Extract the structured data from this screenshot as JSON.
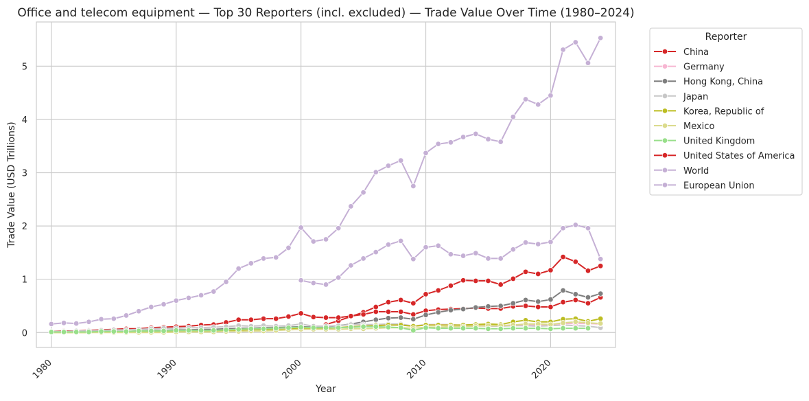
{
  "chart_data": {
    "type": "line",
    "title": "Office and telecom equipment — Top 30 Reporters (incl. excluded) — Trade Value Over Time (1980–2024)",
    "xlabel": "Year",
    "ylabel": "Trade Value (USD Trillions)",
    "xlim": [
      1978.8,
      2025.2
    ],
    "ylim": [
      -0.28,
      5.83
    ],
    "xticks": [
      1980,
      1990,
      2000,
      2010,
      2020
    ],
    "yticks": [
      0,
      1,
      2,
      3,
      4,
      5
    ],
    "grid": true,
    "legend_title": "Reporter",
    "legend_position": "outside-right",
    "series": [
      {
        "name": "World",
        "color": "#c5b0d5",
        "x": [
          1980,
          1981,
          1982,
          1983,
          1984,
          1985,
          1986,
          1987,
          1988,
          1989,
          1990,
          1991,
          1992,
          1993,
          1994,
          1995,
          1996,
          1997,
          1998,
          1999,
          2000,
          2001,
          2002,
          2003,
          2004,
          2005,
          2006,
          2007,
          2008,
          2009,
          2010,
          2011,
          2012,
          2013,
          2014,
          2015,
          2016,
          2017,
          2018,
          2019,
          2020,
          2021,
          2022,
          2023,
          2024
        ],
        "y": [
          0.16,
          0.18,
          0.17,
          0.2,
          0.25,
          0.26,
          0.32,
          0.4,
          0.48,
          0.53,
          0.6,
          0.65,
          0.7,
          0.77,
          0.95,
          1.2,
          1.3,
          1.39,
          1.41,
          1.59,
          1.97,
          1.71,
          1.75,
          1.96,
          2.37,
          2.63,
          3.01,
          3.13,
          3.23,
          2.75,
          3.37,
          3.54,
          3.57,
          3.67,
          3.73,
          3.63,
          3.58,
          4.05,
          4.38,
          4.28,
          4.45,
          5.31,
          5.45,
          5.06,
          5.53
        ]
      },
      {
        "name": "European Union",
        "color": "#c5b0d5",
        "x": [
          2000,
          2001,
          2002,
          2003,
          2004,
          2005,
          2006,
          2007,
          2008,
          2009,
          2010,
          2011,
          2012,
          2013,
          2014,
          2015,
          2016,
          2017,
          2018,
          2019,
          2020,
          2021,
          2022,
          2023,
          2024
        ],
        "y": [
          0.98,
          0.93,
          0.9,
          1.03,
          1.26,
          1.39,
          1.51,
          1.65,
          1.72,
          1.38,
          1.6,
          1.63,
          1.47,
          1.44,
          1.49,
          1.39,
          1.39,
          1.56,
          1.69,
          1.66,
          1.7,
          1.96,
          2.02,
          1.96,
          1.38
        ]
      },
      {
        "name": "China",
        "color": "#d62728",
        "x": [
          2002,
          2003,
          2004,
          2005,
          2006,
          2007,
          2008,
          2009,
          2010,
          2011,
          2012,
          2013,
          2014,
          2015,
          2016,
          2017,
          2018,
          2019,
          2020,
          2021,
          2022,
          2023,
          2024
        ],
        "y": [
          0.15,
          0.22,
          0.3,
          0.38,
          0.48,
          0.57,
          0.61,
          0.55,
          0.72,
          0.79,
          0.88,
          0.98,
          0.97,
          0.97,
          0.9,
          1.01,
          1.14,
          1.1,
          1.17,
          1.42,
          1.33,
          1.16,
          1.25
        ]
      },
      {
        "name": "United States of America",
        "color": "#d62728",
        "x": [
          1980,
          1981,
          1982,
          1983,
          1984,
          1985,
          1986,
          1987,
          1988,
          1989,
          1990,
          1991,
          1992,
          1993,
          1994,
          1995,
          1996,
          1997,
          1998,
          1999,
          2000,
          2001,
          2002,
          2003,
          2004,
          2005,
          2006,
          2007,
          2008,
          2009,
          2010,
          2011,
          2012,
          2013,
          2014,
          2015,
          2016,
          2017,
          2018,
          2019,
          2020,
          2021,
          2022,
          2023,
          2024
        ],
        "y": [
          0.02,
          0.03,
          0.03,
          0.04,
          0.05,
          0.06,
          0.07,
          0.07,
          0.09,
          0.1,
          0.11,
          0.12,
          0.14,
          0.15,
          0.19,
          0.24,
          0.24,
          0.26,
          0.26,
          0.3,
          0.36,
          0.29,
          0.28,
          0.28,
          0.31,
          0.34,
          0.39,
          0.39,
          0.39,
          0.34,
          0.41,
          0.43,
          0.44,
          0.45,
          0.46,
          0.45,
          0.45,
          0.49,
          0.5,
          0.48,
          0.48,
          0.57,
          0.61,
          0.55,
          0.66
        ]
      },
      {
        "name": "Hong Kong, China",
        "color": "#7f7f7f",
        "x": [
          1980,
          1981,
          1982,
          1983,
          1984,
          1985,
          1986,
          1987,
          1988,
          1989,
          1990,
          1991,
          1992,
          1993,
          1994,
          1995,
          1996,
          1997,
          1998,
          1999,
          2000,
          2001,
          2002,
          2003,
          2004,
          2005,
          2006,
          2007,
          2008,
          2009,
          2010,
          2011,
          2012,
          2013,
          2014,
          2015,
          2016,
          2017,
          2018,
          2019,
          2020,
          2021,
          2022,
          2023,
          2024
        ],
        "y": [
          0.01,
          0.01,
          0.01,
          0.01,
          0.02,
          0.02,
          0.02,
          0.03,
          0.04,
          0.04,
          0.05,
          0.05,
          0.06,
          0.06,
          0.07,
          0.08,
          0.08,
          0.09,
          0.09,
          0.1,
          0.11,
          0.1,
          0.11,
          0.13,
          0.16,
          0.2,
          0.24,
          0.27,
          0.28,
          0.25,
          0.33,
          0.38,
          0.42,
          0.44,
          0.47,
          0.49,
          0.5,
          0.55,
          0.61,
          0.58,
          0.62,
          0.79,
          0.72,
          0.66,
          0.73
        ]
      },
      {
        "name": "Japan",
        "color": "#c7c7c7",
        "x": [
          1980,
          1981,
          1982,
          1983,
          1984,
          1985,
          1986,
          1987,
          1988,
          1989,
          1990,
          1991,
          1992,
          1993,
          1994,
          1995,
          1996,
          1997,
          1998,
          1999,
          2000,
          2001,
          2002,
          2003,
          2004,
          2005,
          2006,
          2007,
          2008,
          2009,
          2010,
          2011,
          2012,
          2013,
          2014,
          2015,
          2016,
          2017,
          2018,
          2019,
          2020,
          2021,
          2022,
          2023,
          2024
        ],
        "y": [
          0.02,
          0.02,
          0.03,
          0.03,
          0.04,
          0.05,
          0.05,
          0.06,
          0.07,
          0.08,
          0.08,
          0.09,
          0.09,
          0.1,
          0.11,
          0.13,
          0.12,
          0.13,
          0.12,
          0.13,
          0.16,
          0.12,
          0.12,
          0.13,
          0.15,
          0.15,
          0.15,
          0.16,
          0.16,
          0.12,
          0.15,
          0.15,
          0.15,
          0.13,
          0.13,
          0.12,
          0.12,
          0.13,
          0.13,
          0.12,
          0.13,
          0.14,
          0.13,
          0.12,
          0.09
        ]
      },
      {
        "name": "Germany",
        "color": "#f7b6d2",
        "x": [
          1980,
          1981,
          1982,
          1983,
          1984,
          1985,
          1986,
          1987,
          1988,
          1989,
          1990,
          1991,
          1992,
          1993,
          1994,
          1995,
          1996,
          1997,
          1998,
          1999,
          2000,
          2001,
          2002,
          2003,
          2004,
          2005,
          2006,
          2007,
          2008,
          2009,
          2010,
          2011,
          2012,
          2013,
          2014,
          2015,
          2016,
          2017,
          2018,
          2019,
          2020,
          2021,
          2022,
          2023,
          2024
        ],
        "y": [
          0.01,
          0.01,
          0.01,
          0.01,
          0.01,
          0.02,
          0.02,
          0.02,
          0.03,
          0.03,
          0.04,
          0.04,
          0.04,
          0.04,
          0.05,
          0.06,
          0.06,
          0.06,
          0.07,
          0.07,
          0.08,
          0.08,
          0.08,
          0.09,
          0.1,
          0.11,
          0.13,
          0.14,
          0.14,
          0.12,
          0.14,
          0.15,
          0.14,
          0.14,
          0.15,
          0.13,
          0.13,
          0.14,
          0.15,
          0.14,
          0.15,
          0.17,
          0.17,
          0.17,
          0.16
        ]
      },
      {
        "name": "Korea, Republic of",
        "color": "#bcbd22",
        "x": [
          1980,
          1981,
          1982,
          1983,
          1984,
          1985,
          1986,
          1987,
          1988,
          1989,
          1990,
          1991,
          1992,
          1993,
          1994,
          1995,
          1996,
          1997,
          1998,
          1999,
          2000,
          2001,
          2002,
          2003,
          2004,
          2005,
          2006,
          2007,
          2008,
          2009,
          2010,
          2011,
          2012,
          2013,
          2014,
          2015,
          2016,
          2017,
          2018,
          2019,
          2020,
          2021,
          2022,
          2023,
          2024
        ],
        "y": [
          0.0,
          0.0,
          0.0,
          0.0,
          0.01,
          0.01,
          0.01,
          0.01,
          0.02,
          0.02,
          0.02,
          0.02,
          0.02,
          0.02,
          0.03,
          0.04,
          0.04,
          0.05,
          0.05,
          0.06,
          0.08,
          0.07,
          0.08,
          0.09,
          0.11,
          0.12,
          0.13,
          0.14,
          0.14,
          0.12,
          0.14,
          0.14,
          0.14,
          0.14,
          0.15,
          0.16,
          0.15,
          0.2,
          0.23,
          0.2,
          0.2,
          0.25,
          0.26,
          0.21,
          0.26
        ]
      },
      {
        "name": "Mexico",
        "color": "#dbdb8d",
        "x": [
          1980,
          1981,
          1982,
          1983,
          1984,
          1985,
          1986,
          1987,
          1988,
          1989,
          1990,
          1991,
          1992,
          1993,
          1994,
          1995,
          1996,
          1997,
          1998,
          1999,
          2000,
          2001,
          2002,
          2003,
          2004,
          2005,
          2006,
          2007,
          2008,
          2009,
          2010,
          2011,
          2012,
          2013,
          2014,
          2015,
          2016,
          2017,
          2018,
          2019,
          2020,
          2021,
          2022,
          2023,
          2024
        ],
        "y": [
          0.0,
          0.0,
          0.0,
          0.0,
          0.0,
          0.0,
          0.0,
          0.0,
          0.0,
          0.0,
          0.01,
          0.01,
          0.01,
          0.01,
          0.02,
          0.02,
          0.03,
          0.03,
          0.04,
          0.05,
          0.06,
          0.06,
          0.06,
          0.06,
          0.07,
          0.07,
          0.08,
          0.09,
          0.09,
          0.08,
          0.1,
          0.1,
          0.11,
          0.11,
          0.12,
          0.13,
          0.13,
          0.14,
          0.16,
          0.16,
          0.15,
          0.18,
          0.2,
          0.18,
          0.17
        ]
      },
      {
        "name": "United Kingdom",
        "color": "#98df8a",
        "x": [
          1980,
          1981,
          1982,
          1983,
          1984,
          1985,
          1986,
          1987,
          1988,
          1989,
          1990,
          1991,
          1992,
          1993,
          1994,
          1995,
          1996,
          1997,
          1998,
          1999,
          2000,
          2001,
          2002,
          2003,
          2004,
          2005,
          2006,
          2007,
          2008,
          2009,
          2010,
          2011,
          2012,
          2013,
          2014,
          2015,
          2016,
          2017,
          2018,
          2019,
          2020,
          2021,
          2022,
          2023
        ],
        "y": [
          0.01,
          0.01,
          0.01,
          0.01,
          0.02,
          0.02,
          0.02,
          0.03,
          0.03,
          0.03,
          0.04,
          0.04,
          0.04,
          0.04,
          0.05,
          0.06,
          0.07,
          0.07,
          0.08,
          0.09,
          0.1,
          0.09,
          0.09,
          0.09,
          0.1,
          0.11,
          0.11,
          0.1,
          0.09,
          0.04,
          0.09,
          0.08,
          0.08,
          0.08,
          0.08,
          0.07,
          0.07,
          0.08,
          0.08,
          0.08,
          0.07,
          0.08,
          0.08,
          0.08
        ]
      }
    ],
    "legend_entries": [
      {
        "name": "China",
        "color": "#d62728"
      },
      {
        "name": "Germany",
        "color": "#f7b6d2"
      },
      {
        "name": "Hong Kong, China",
        "color": "#7f7f7f"
      },
      {
        "name": "Japan",
        "color": "#c7c7c7"
      },
      {
        "name": "Korea, Republic of",
        "color": "#bcbd22"
      },
      {
        "name": "Mexico",
        "color": "#dbdb8d"
      },
      {
        "name": "United Kingdom",
        "color": "#98df8a"
      },
      {
        "name": "United States of America",
        "color": "#d62728"
      },
      {
        "name": "World",
        "color": "#c5b0d5"
      },
      {
        "name": "European Union",
        "color": "#c5b0d5"
      }
    ]
  }
}
